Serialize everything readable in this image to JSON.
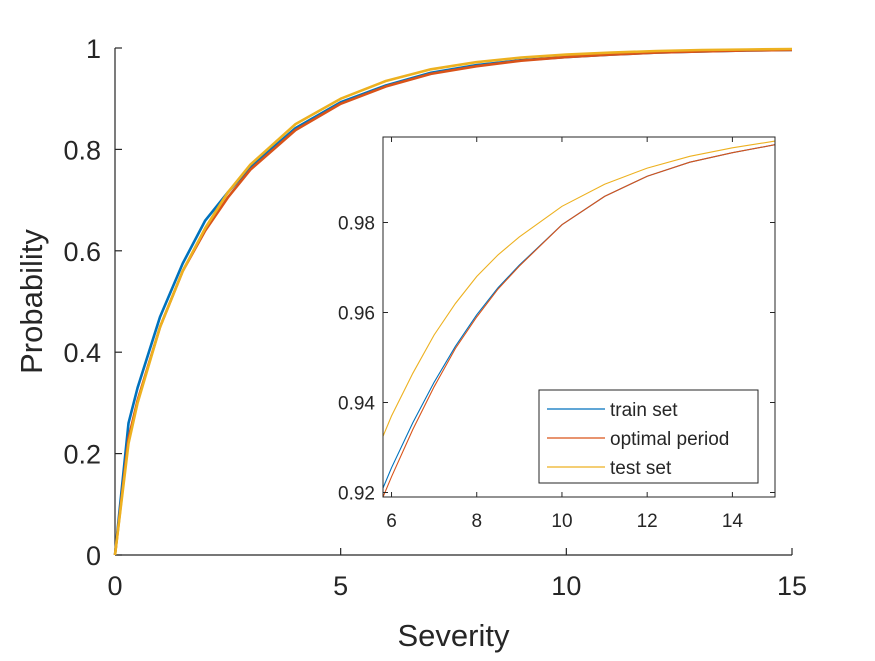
{
  "chart_data": [
    {
      "id": "main",
      "type": "line",
      "xlabel": "Severity",
      "ylabel": "Probability",
      "xlim": [
        0,
        15
      ],
      "ylim": [
        0,
        1
      ],
      "xticks": [
        0,
        5,
        10,
        15
      ],
      "yticks": [
        0,
        0.2,
        0.4,
        0.6,
        0.8,
        1
      ],
      "xtick_labels": [
        "0",
        "5",
        "10",
        "15"
      ],
      "ytick_labels": [
        "0",
        "0.2",
        "0.4",
        "0.6",
        "0.8",
        "1"
      ],
      "grid": false,
      "x": [
        0,
        0.3,
        0.5,
        1,
        1.5,
        2,
        2.5,
        3,
        4,
        5,
        6,
        7,
        8,
        9,
        10,
        11,
        12,
        13,
        14,
        15
      ],
      "series": [
        {
          "name": "train set",
          "color": "#0072BD",
          "values": [
            0,
            0.26,
            0.33,
            0.47,
            0.575,
            0.66,
            0.715,
            0.765,
            0.842,
            0.893,
            0.926,
            0.951,
            0.966,
            0.976,
            0.982,
            0.987,
            0.991,
            0.993,
            0.995,
            0.996
          ]
        },
        {
          "name": "optimal period",
          "color": "#D95319",
          "values": [
            0,
            0.23,
            0.305,
            0.45,
            0.56,
            0.64,
            0.705,
            0.76,
            0.838,
            0.89,
            0.924,
            0.949,
            0.964,
            0.975,
            0.982,
            0.987,
            0.991,
            0.993,
            0.995,
            0.996
          ]
        },
        {
          "name": "test set",
          "color": "#EDB120",
          "values": [
            0,
            0.22,
            0.3,
            0.45,
            0.56,
            0.645,
            0.715,
            0.77,
            0.85,
            0.9,
            0.935,
            0.958,
            0.972,
            0.981,
            0.987,
            0.991,
            0.994,
            0.996,
            0.997,
            0.998
          ]
        }
      ]
    },
    {
      "id": "inset",
      "type": "line",
      "xlim": [
        5.8,
        15
      ],
      "ylim": [
        0.919,
        0.999
      ],
      "xticks": [
        6,
        8,
        10,
        12,
        14
      ],
      "yticks": [
        0.92,
        0.94,
        0.96,
        0.98
      ],
      "xtick_labels": [
        "6",
        "8",
        "10",
        "12",
        "14"
      ],
      "ytick_labels": [
        "0.92",
        "0.94",
        "0.96",
        "0.98"
      ],
      "grid": false,
      "legend_position": "bottom-right",
      "x": [
        5.8,
        6,
        6.5,
        7,
        7.5,
        8,
        8.5,
        9,
        10,
        11,
        12,
        13,
        14,
        15
      ],
      "series": [
        {
          "name": "train set",
          "color": "#0072BD",
          "values": [
            0.921,
            0.9255,
            0.9355,
            0.9445,
            0.9525,
            0.9595,
            0.9655,
            0.9705,
            0.9795,
            0.9858,
            0.9903,
            0.9934,
            0.9955,
            0.9973
          ]
        },
        {
          "name": "optimal period",
          "color": "#D95319",
          "values": [
            0.919,
            0.9235,
            0.934,
            0.9435,
            0.952,
            0.959,
            0.9652,
            0.9703,
            0.9795,
            0.9858,
            0.9903,
            0.9934,
            0.9955,
            0.9973
          ]
        },
        {
          "name": "test set",
          "color": "#EDB120",
          "values": [
            0.9325,
            0.937,
            0.9465,
            0.955,
            0.962,
            0.968,
            0.9728,
            0.9768,
            0.9836,
            0.9885,
            0.9921,
            0.9947,
            0.9966,
            0.9981
          ]
        }
      ]
    }
  ]
}
